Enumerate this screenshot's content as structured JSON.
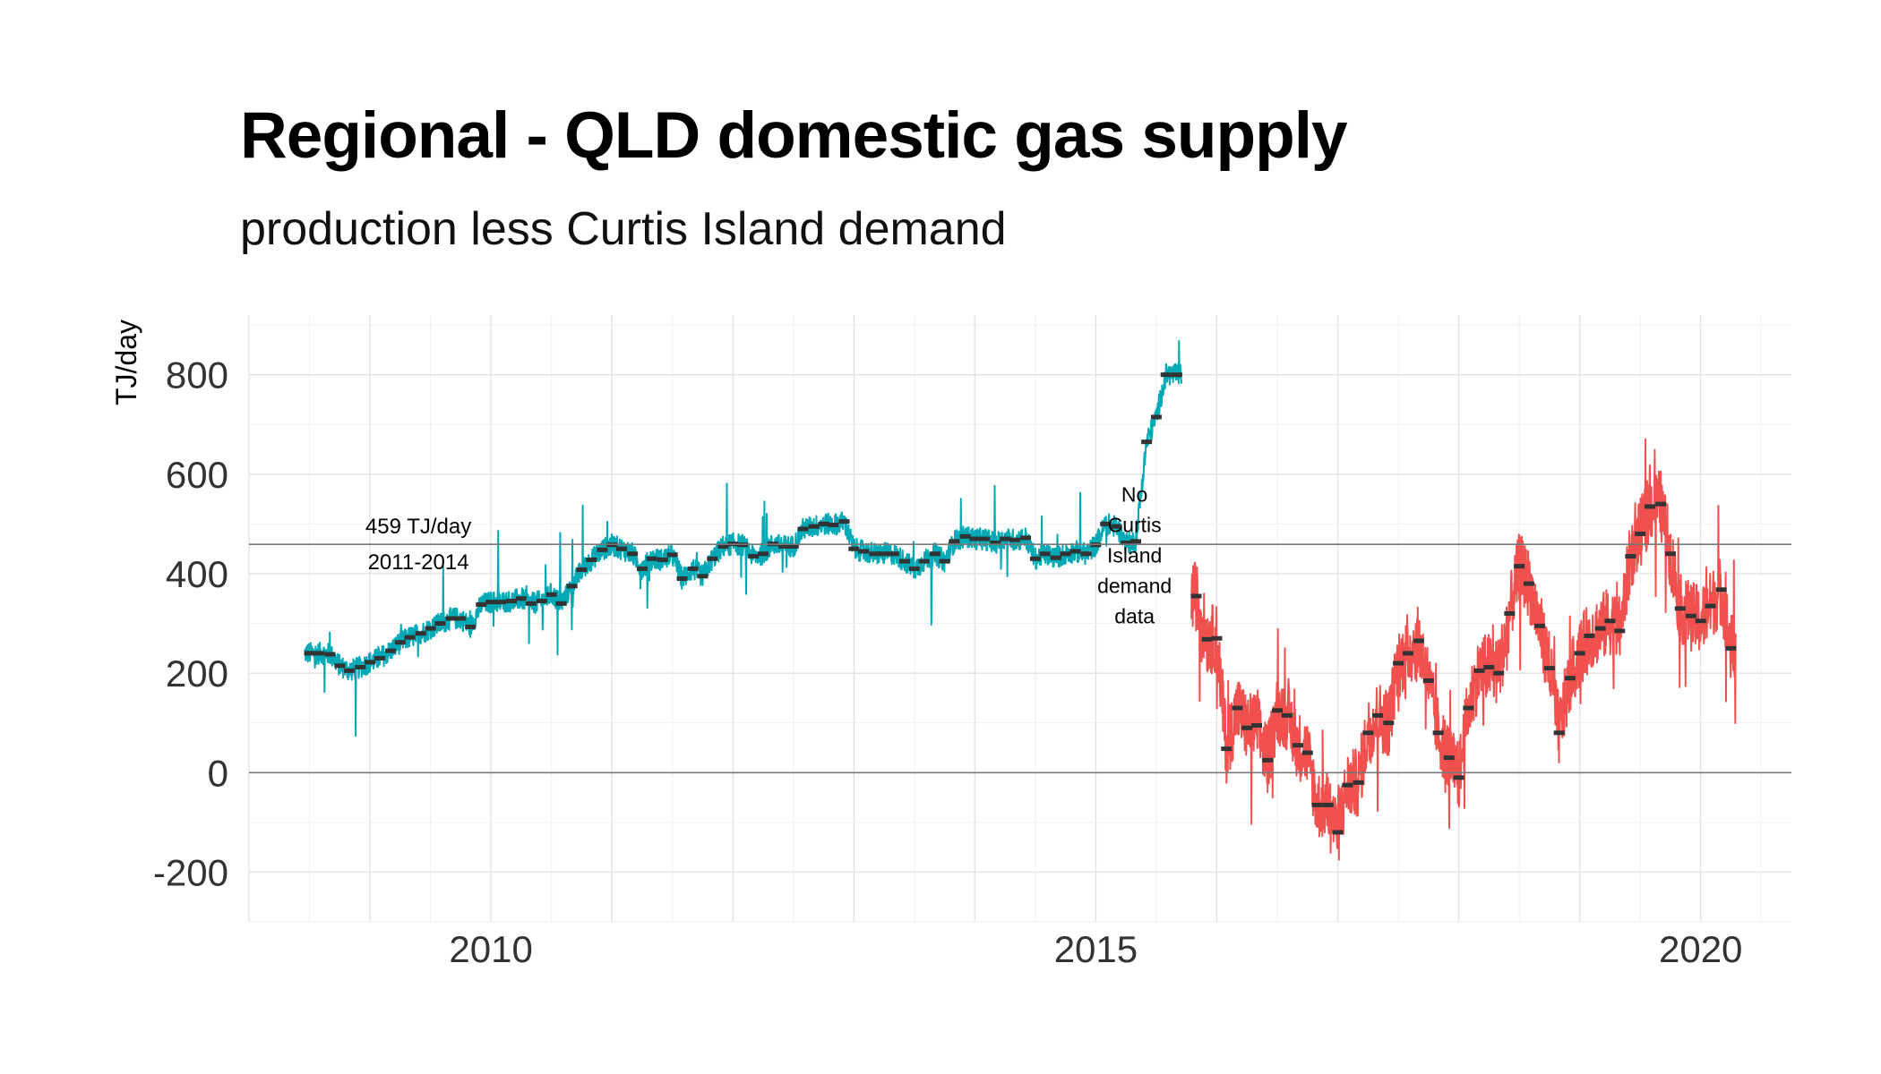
{
  "chart_data": {
    "type": "line",
    "title": "Regional - QLD domestic gas supply",
    "subtitle": "production less Curtis Island demand",
    "ylabel": "TJ/day",
    "xlabel": "",
    "xlim": [
      2008.0,
      2020.75
    ],
    "ylim": [
      -300,
      920
    ],
    "x_ticks": [
      2010,
      2015,
      2020
    ],
    "y_ticks": [
      -200,
      0,
      200,
      400,
      600,
      800
    ],
    "grid": true,
    "reference_lines": [
      {
        "y": 459,
        "label_lines": [
          "459 TJ/day",
          "2011-2014"
        ],
        "label_x": 2009.4
      },
      {
        "y": 0
      }
    ],
    "annotations": [
      {
        "x": 2015.32,
        "y": 545,
        "lines": [
          "No",
          "Curtis",
          "Island",
          "demand",
          "data"
        ]
      }
    ],
    "colors": {
      "series_2008_2015": "#00A9B5",
      "series_2015_2020": "#F0514F",
      "monthly_mean": "#333333"
    },
    "series": [
      {
        "key": "series_2008_2015",
        "monthly_mean": [
          [
            2008.5,
            240
          ],
          [
            2008.58,
            240
          ],
          [
            2008.67,
            238
          ],
          [
            2008.75,
            215
          ],
          [
            2008.83,
            205
          ],
          [
            2008.92,
            212
          ],
          [
            2009.0,
            222
          ],
          [
            2009.08,
            230
          ],
          [
            2009.17,
            245
          ],
          [
            2009.25,
            262
          ],
          [
            2009.33,
            272
          ],
          [
            2009.42,
            280
          ],
          [
            2009.5,
            290
          ],
          [
            2009.58,
            300
          ],
          [
            2009.67,
            310
          ],
          [
            2009.75,
            310
          ],
          [
            2009.83,
            293
          ],
          [
            2009.92,
            338
          ],
          [
            2010.0,
            343
          ],
          [
            2010.08,
            343
          ],
          [
            2010.17,
            345
          ],
          [
            2010.25,
            350
          ],
          [
            2010.33,
            340
          ],
          [
            2010.42,
            345
          ],
          [
            2010.5,
            358
          ],
          [
            2010.58,
            340
          ],
          [
            2010.67,
            375
          ],
          [
            2010.75,
            408
          ],
          [
            2010.83,
            428
          ],
          [
            2010.92,
            448
          ],
          [
            2011.0,
            458
          ],
          [
            2011.08,
            450
          ],
          [
            2011.17,
            440
          ],
          [
            2011.25,
            410
          ],
          [
            2011.33,
            430
          ],
          [
            2011.42,
            428
          ],
          [
            2011.5,
            438
          ],
          [
            2011.58,
            390
          ],
          [
            2011.67,
            410
          ],
          [
            2011.75,
            395
          ],
          [
            2011.83,
            430
          ],
          [
            2011.92,
            455
          ],
          [
            2012.0,
            460
          ],
          [
            2012.08,
            458
          ],
          [
            2012.17,
            435
          ],
          [
            2012.25,
            440
          ],
          [
            2012.33,
            460
          ],
          [
            2012.42,
            455
          ],
          [
            2012.5,
            455
          ],
          [
            2012.58,
            490
          ],
          [
            2012.67,
            495
          ],
          [
            2012.75,
            500
          ],
          [
            2012.83,
            498
          ],
          [
            2012.92,
            505
          ],
          [
            2013.0,
            450
          ],
          [
            2013.08,
            445
          ],
          [
            2013.17,
            440
          ],
          [
            2013.25,
            440
          ],
          [
            2013.33,
            440
          ],
          [
            2013.42,
            425
          ],
          [
            2013.5,
            410
          ],
          [
            2013.58,
            425
          ],
          [
            2013.67,
            440
          ],
          [
            2013.75,
            425
          ],
          [
            2013.83,
            465
          ],
          [
            2013.92,
            475
          ],
          [
            2014.0,
            470
          ],
          [
            2014.08,
            470
          ],
          [
            2014.17,
            462
          ],
          [
            2014.25,
            470
          ],
          [
            2014.33,
            468
          ],
          [
            2014.42,
            472
          ],
          [
            2014.5,
            430
          ],
          [
            2014.58,
            440
          ],
          [
            2014.67,
            432
          ],
          [
            2014.75,
            440
          ],
          [
            2014.83,
            445
          ],
          [
            2014.92,
            440
          ],
          [
            2015.0,
            458
          ],
          [
            2015.08,
            500
          ],
          [
            2015.17,
            495
          ],
          [
            2015.25,
            462
          ],
          [
            2015.33,
            465
          ],
          [
            2015.42,
            665
          ],
          [
            2015.5,
            715
          ],
          [
            2015.58,
            800
          ],
          [
            2015.67,
            800
          ]
        ]
      },
      {
        "key": "series_2015_2020",
        "monthly_mean": [
          [
            2015.83,
            355
          ],
          [
            2015.92,
            268
          ],
          [
            2016.0,
            270
          ],
          [
            2016.08,
            48
          ],
          [
            2016.17,
            130
          ],
          [
            2016.25,
            90
          ],
          [
            2016.33,
            95
          ],
          [
            2016.42,
            25
          ],
          [
            2016.5,
            125
          ],
          [
            2016.58,
            115
          ],
          [
            2016.67,
            55
          ],
          [
            2016.75,
            40
          ],
          [
            2016.83,
            -65
          ],
          [
            2016.92,
            -65
          ],
          [
            2017.0,
            -120
          ],
          [
            2017.08,
            -25
          ],
          [
            2017.17,
            -20
          ],
          [
            2017.25,
            80
          ],
          [
            2017.33,
            115
          ],
          [
            2017.42,
            100
          ],
          [
            2017.5,
            220
          ],
          [
            2017.58,
            240
          ],
          [
            2017.67,
            265
          ],
          [
            2017.75,
            185
          ],
          [
            2017.83,
            80
          ],
          [
            2017.92,
            30
          ],
          [
            2018.0,
            -10
          ],
          [
            2018.08,
            130
          ],
          [
            2018.17,
            205
          ],
          [
            2018.25,
            212
          ],
          [
            2018.33,
            200
          ],
          [
            2018.42,
            320
          ],
          [
            2018.5,
            415
          ],
          [
            2018.58,
            380
          ],
          [
            2018.67,
            295
          ],
          [
            2018.75,
            210
          ],
          [
            2018.83,
            80
          ],
          [
            2018.92,
            190
          ],
          [
            2019.0,
            240
          ],
          [
            2019.08,
            275
          ],
          [
            2019.17,
            290
          ],
          [
            2019.25,
            305
          ],
          [
            2019.33,
            285
          ],
          [
            2019.42,
            435
          ],
          [
            2019.5,
            480
          ],
          [
            2019.58,
            535
          ],
          [
            2019.67,
            540
          ],
          [
            2019.75,
            440
          ],
          [
            2019.83,
            330
          ],
          [
            2019.92,
            315
          ],
          [
            2020.0,
            305
          ],
          [
            2020.08,
            335
          ],
          [
            2020.17,
            368
          ],
          [
            2020.25,
            250
          ]
        ]
      }
    ]
  }
}
